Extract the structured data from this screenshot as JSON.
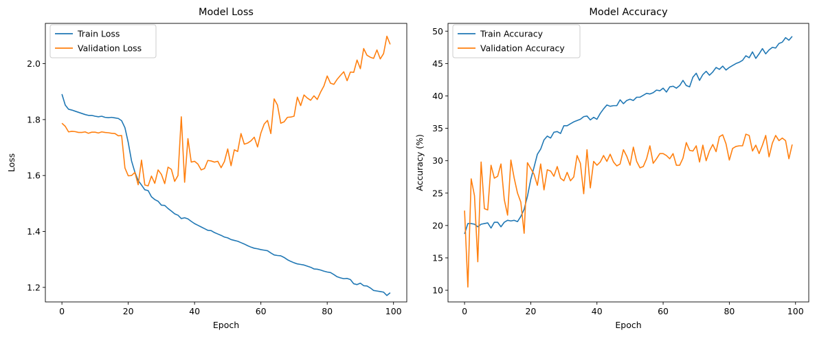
{
  "chart_data": [
    {
      "type": "line",
      "title": "Model Loss",
      "xlabel": "Epoch",
      "ylabel": "Loss",
      "xlim": [
        -5,
        104
      ],
      "ylim": [
        1.148,
        2.144
      ],
      "xticks": [
        "0",
        "20",
        "40",
        "60",
        "80",
        "100"
      ],
      "yticks": [
        "1.2",
        "1.4",
        "1.6",
        "1.8",
        "2.0"
      ],
      "grid": false,
      "legend": "top-left",
      "x": [
        0,
        1,
        2,
        3,
        4,
        5,
        6,
        7,
        8,
        9,
        10,
        11,
        12,
        13,
        14,
        15,
        16,
        17,
        18,
        19,
        20,
        21,
        22,
        23,
        24,
        25,
        26,
        27,
        28,
        29,
        30,
        31,
        32,
        33,
        34,
        35,
        36,
        37,
        38,
        39,
        40,
        41,
        42,
        43,
        44,
        45,
        46,
        47,
        48,
        49,
        50,
        51,
        52,
        53,
        54,
        55,
        56,
        57,
        58,
        59,
        60,
        61,
        62,
        63,
        64,
        65,
        66,
        67,
        68,
        69,
        70,
        71,
        72,
        73,
        74,
        75,
        76,
        77,
        78,
        79,
        80,
        81,
        82,
        83,
        84,
        85,
        86,
        87,
        88,
        89,
        90,
        91,
        92,
        93,
        94,
        95,
        96,
        97,
        98,
        99
      ],
      "series": [
        {
          "name": "Train Loss",
          "color": "#1f77b4",
          "values": [
            1.891,
            1.852,
            1.837,
            1.834,
            1.83,
            1.826,
            1.822,
            1.818,
            1.815,
            1.815,
            1.812,
            1.81,
            1.812,
            1.808,
            1.807,
            1.808,
            1.806,
            1.804,
            1.796,
            1.771,
            1.718,
            1.652,
            1.612,
            1.582,
            1.566,
            1.549,
            1.546,
            1.524,
            1.514,
            1.508,
            1.494,
            1.493,
            1.482,
            1.473,
            1.463,
            1.458,
            1.446,
            1.449,
            1.445,
            1.436,
            1.428,
            1.422,
            1.416,
            1.41,
            1.404,
            1.403,
            1.396,
            1.391,
            1.386,
            1.38,
            1.377,
            1.371,
            1.368,
            1.365,
            1.36,
            1.355,
            1.349,
            1.344,
            1.34,
            1.338,
            1.335,
            1.333,
            1.331,
            1.323,
            1.316,
            1.314,
            1.313,
            1.307,
            1.299,
            1.293,
            1.288,
            1.284,
            1.282,
            1.28,
            1.276,
            1.272,
            1.266,
            1.265,
            1.262,
            1.258,
            1.255,
            1.253,
            1.246,
            1.238,
            1.234,
            1.231,
            1.232,
            1.228,
            1.213,
            1.21,
            1.215,
            1.206,
            1.205,
            1.198,
            1.189,
            1.187,
            1.185,
            1.183,
            1.171,
            1.181
          ]
        },
        {
          "name": "Validation Loss",
          "color": "#ff7f0e",
          "values": [
            1.787,
            1.776,
            1.756,
            1.758,
            1.757,
            1.754,
            1.754,
            1.756,
            1.751,
            1.755,
            1.755,
            1.752,
            1.756,
            1.754,
            1.753,
            1.751,
            1.75,
            1.742,
            1.743,
            1.627,
            1.599,
            1.6,
            1.611,
            1.567,
            1.655,
            1.566,
            1.563,
            1.598,
            1.572,
            1.62,
            1.604,
            1.571,
            1.63,
            1.622,
            1.579,
            1.6,
            1.81,
            1.576,
            1.732,
            1.648,
            1.651,
            1.641,
            1.62,
            1.625,
            1.654,
            1.652,
            1.648,
            1.651,
            1.628,
            1.65,
            1.695,
            1.635,
            1.692,
            1.686,
            1.75,
            1.712,
            1.716,
            1.724,
            1.737,
            1.702,
            1.752,
            1.784,
            1.797,
            1.75,
            1.874,
            1.852,
            1.787,
            1.792,
            1.808,
            1.809,
            1.812,
            1.88,
            1.85,
            1.888,
            1.877,
            1.869,
            1.885,
            1.872,
            1.898,
            1.92,
            1.956,
            1.93,
            1.926,
            1.944,
            1.958,
            1.971,
            1.939,
            1.97,
            1.969,
            2.013,
            1.982,
            2.054,
            2.03,
            2.023,
            2.019,
            2.049,
            2.017,
            2.036,
            2.098,
            2.069
          ]
        }
      ]
    },
    {
      "type": "line",
      "title": "Model Accuracy",
      "xlabel": "Epoch",
      "ylabel": "Accuracy (%)",
      "xlim": [
        -5,
        104
      ],
      "ylim": [
        8.2,
        51.2
      ],
      "xticks": [
        "0",
        "20",
        "40",
        "60",
        "80",
        "100"
      ],
      "yticks": [
        "10",
        "15",
        "20",
        "25",
        "30",
        "35",
        "40",
        "45",
        "50"
      ],
      "grid": false,
      "legend": "top-left",
      "x": [
        0,
        1,
        2,
        3,
        4,
        5,
        6,
        7,
        8,
        9,
        10,
        11,
        12,
        13,
        14,
        15,
        16,
        17,
        18,
        19,
        20,
        21,
        22,
        23,
        24,
        25,
        26,
        27,
        28,
        29,
        30,
        31,
        32,
        33,
        34,
        35,
        36,
        37,
        38,
        39,
        40,
        41,
        42,
        43,
        44,
        45,
        46,
        47,
        48,
        49,
        50,
        51,
        52,
        53,
        54,
        55,
        56,
        57,
        58,
        59,
        60,
        61,
        62,
        63,
        64,
        65,
        66,
        67,
        68,
        69,
        70,
        71,
        72,
        73,
        74,
        75,
        76,
        77,
        78,
        79,
        80,
        81,
        82,
        83,
        84,
        85,
        86,
        87,
        88,
        89,
        90,
        91,
        92,
        93,
        94,
        95,
        96,
        97,
        98,
        99
      ],
      "series": [
        {
          "name": "Train Accuracy",
          "color": "#1f77b4",
          "values": [
            18.7,
            20.3,
            20.3,
            20.2,
            19.8,
            20.2,
            20.3,
            20.4,
            19.6,
            20.5,
            20.5,
            19.8,
            20.5,
            20.8,
            20.7,
            20.8,
            20.6,
            21.4,
            22.5,
            24.5,
            27.1,
            29.0,
            31.0,
            31.8,
            33.2,
            33.8,
            33.5,
            34.4,
            34.5,
            34.2,
            35.4,
            35.4,
            35.7,
            36.0,
            36.2,
            36.4,
            36.8,
            36.9,
            36.3,
            36.7,
            36.4,
            37.3,
            38.0,
            38.6,
            38.4,
            38.5,
            38.5,
            39.4,
            38.8,
            39.3,
            39.5,
            39.3,
            39.8,
            39.8,
            40.1,
            40.4,
            40.3,
            40.5,
            40.9,
            40.8,
            41.2,
            40.6,
            41.4,
            41.5,
            41.2,
            41.6,
            42.4,
            41.6,
            41.4,
            42.9,
            43.5,
            42.4,
            43.3,
            43.8,
            43.2,
            43.7,
            44.4,
            44.1,
            44.6,
            44.0,
            44.4,
            44.7,
            45.0,
            45.2,
            45.5,
            46.2,
            45.9,
            46.8,
            45.8,
            46.5,
            47.3,
            46.5,
            47.1,
            47.5,
            47.4,
            48.1,
            48.3,
            49.0,
            48.6,
            49.2
          ]
        },
        {
          "name": "Validation Accuracy",
          "color": "#ff7f0e",
          "values": [
            22.3,
            10.5,
            27.2,
            24.6,
            14.4,
            29.8,
            22.6,
            22.4,
            29.3,
            27.3,
            27.6,
            29.5,
            24.0,
            21.6,
            30.1,
            27.3,
            25.0,
            23.6,
            18.8,
            29.7,
            28.8,
            27.9,
            26.2,
            29.5,
            25.5,
            28.6,
            28.4,
            27.6,
            29.1,
            27.3,
            26.9,
            28.2,
            26.9,
            27.5,
            30.8,
            29.6,
            24.9,
            31.7,
            25.8,
            29.9,
            29.3,
            29.8,
            30.8,
            29.9,
            31.0,
            29.8,
            29.2,
            29.5,
            31.7,
            30.7,
            29.3,
            32.1,
            29.9,
            28.9,
            29.1,
            30.3,
            32.3,
            29.6,
            30.3,
            31.1,
            31.1,
            30.8,
            30.3,
            31.1,
            29.3,
            29.3,
            30.4,
            32.8,
            31.6,
            31.5,
            32.3,
            29.8,
            32.4,
            30.0,
            31.5,
            32.5,
            31.4,
            33.7,
            34.0,
            32.6,
            30.1,
            31.9,
            32.2,
            32.3,
            32.3,
            34.1,
            33.9,
            31.5,
            32.4,
            31.1,
            32.4,
            33.9,
            30.6,
            32.7,
            33.9,
            33.1,
            33.5,
            33.1,
            30.3,
            32.5
          ]
        }
      ]
    }
  ]
}
